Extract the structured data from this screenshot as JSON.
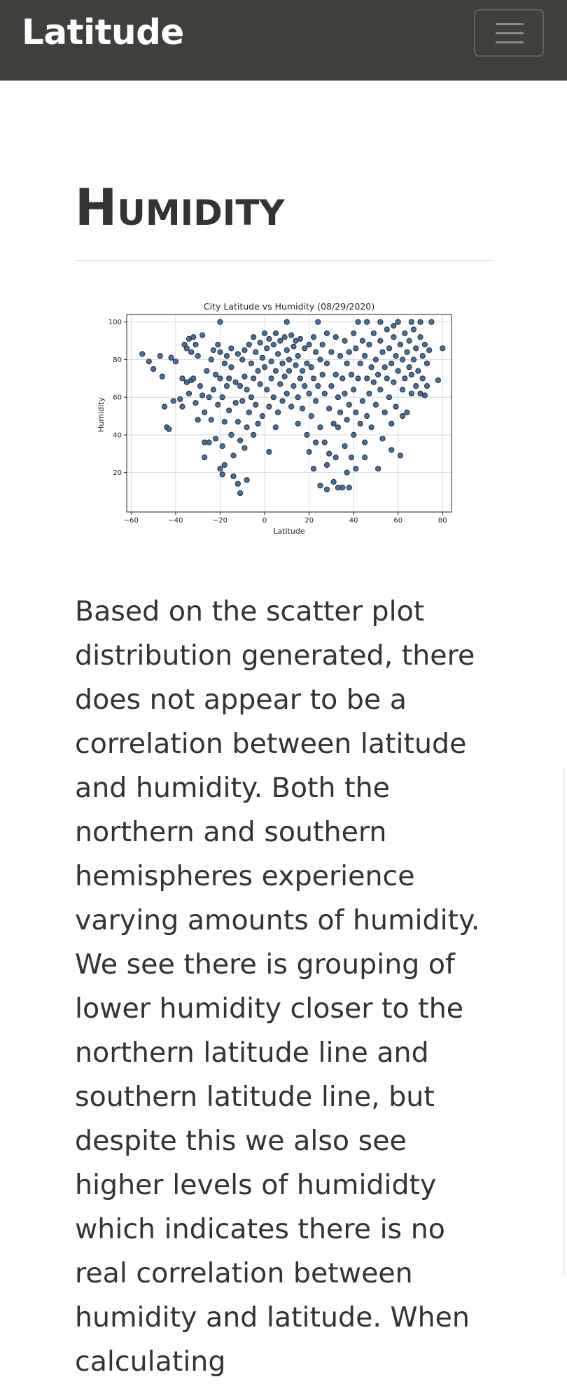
{
  "navbar": {
    "brand": "Latitude",
    "toggle_icon": "hamburger-menu-icon"
  },
  "page": {
    "heading": "Humidity",
    "body": "Based on the scatter plot distribution generated, there does not appear to be a correlation between latitude and humidity. Both the northern and southern hemispheres experience varying amounts of humidity. We see there is grouping of lower humidity closer to the northern latitude line and southern latitude line, but despite this we also see higher levels of humididty which indicates there is no real correlation between humidity and latitude. When calculating"
  },
  "chart_data": {
    "type": "scatter",
    "title": "City Latitude vs Humidity (08/29/2020)",
    "xlabel": "Latitude",
    "ylabel": "Humidity",
    "xlim": [
      -62,
      84
    ],
    "ylim": [
      -1,
      104
    ],
    "xticks": [
      -60,
      -40,
      -20,
      0,
      20,
      40,
      60,
      80
    ],
    "xtick_labels": [
      "−60",
      "−40",
      "−20",
      "0",
      "20",
      "40",
      "60",
      "80"
    ],
    "yticks": [
      20,
      40,
      60,
      80,
      100
    ],
    "grid": true,
    "marker_color": "#4a6f9a",
    "marker_edge": "#1f2d3a",
    "points": [
      [
        -55,
        83
      ],
      [
        -52,
        79
      ],
      [
        -50,
        75
      ],
      [
        -47,
        82
      ],
      [
        -46,
        71
      ],
      [
        -45,
        55
      ],
      [
        -44,
        44
      ],
      [
        -43,
        43
      ],
      [
        -42,
        81
      ],
      [
        -41,
        58
      ],
      [
        -40,
        79
      ],
      [
        -38,
        59
      ],
      [
        -37,
        55
      ],
      [
        -36,
        88
      ],
      [
        -35,
        86
      ],
      [
        -35,
        68
      ],
      [
        -34,
        91
      ],
      [
        -34,
        62
      ],
      [
        -33,
        84
      ],
      [
        -33,
        69
      ],
      [
        -32,
        70
      ],
      [
        -31,
        88
      ],
      [
        -31,
        57
      ],
      [
        -30,
        82
      ],
      [
        -30,
        48
      ],
      [
        -29,
        66
      ],
      [
        -28,
        93
      ],
      [
        -28,
        61
      ],
      [
        -27,
        52
      ],
      [
        -27,
        36
      ],
      [
        -26,
        74
      ],
      [
        -25,
        60
      ],
      [
        -25,
        36
      ],
      [
        -24,
        48
      ],
      [
        -23,
        85
      ],
      [
        -23,
        64
      ],
      [
        -22,
        72
      ],
      [
        -22,
        38
      ],
      [
        -21,
        88
      ],
      [
        -21,
        56
      ],
      [
        -20,
        84
      ],
      [
        -20,
        70
      ],
      [
        -20,
        22
      ],
      [
        -19,
        60
      ],
      [
        -19,
        34
      ],
      [
        -19,
        19
      ],
      [
        -18,
        78
      ],
      [
        -18,
        47
      ],
      [
        -18,
        24
      ],
      [
        -17,
        82
      ],
      [
        -17,
        66
      ],
      [
        -16,
        70
      ],
      [
        -16,
        53
      ],
      [
        -15,
        86
      ],
      [
        -15,
        76
      ],
      [
        -15,
        40
      ],
      [
        -14,
        29
      ],
      [
        -14,
        18
      ],
      [
        -13,
        68
      ],
      [
        -13,
        57
      ],
      [
        -12,
        83
      ],
      [
        -12,
        47
      ],
      [
        -12,
        14
      ],
      [
        -11,
        66
      ],
      [
        -11,
        37
      ],
      [
        -11,
        9
      ],
      [
        -10,
        80
      ],
      [
        -10,
        58
      ],
      [
        -9,
        85
      ],
      [
        -9,
        71
      ],
      [
        -9,
        33
      ],
      [
        -8,
        64
      ],
      [
        -8,
        44
      ],
      [
        -8,
        16
      ],
      [
        -7,
        88
      ],
      [
        -7,
        52
      ],
      [
        -6,
        78
      ],
      [
        -6,
        60
      ],
      [
        -5,
        92
      ],
      [
        -5,
        70
      ],
      [
        -5,
        40
      ],
      [
        -4,
        84
      ],
      [
        -4,
        56
      ],
      [
        -3,
        74
      ],
      [
        -3,
        46
      ],
      [
        -2,
        89
      ],
      [
        -2,
        67
      ],
      [
        -1,
        81
      ],
      [
        -1,
        50
      ],
      [
        0,
        94
      ],
      [
        0,
        76
      ],
      [
        1,
        86
      ],
      [
        1,
        64
      ],
      [
        2,
        91
      ],
      [
        2,
        55
      ],
      [
        2,
        31
      ],
      [
        3,
        79
      ],
      [
        3,
        70
      ],
      [
        4,
        88
      ],
      [
        4,
        60
      ],
      [
        5,
        94
      ],
      [
        5,
        74
      ],
      [
        6,
        83
      ],
      [
        6,
        52
      ],
      [
        7,
        90
      ],
      [
        7,
        67
      ],
      [
        8,
        78
      ],
      [
        8,
        58
      ],
      [
        9,
        92
      ],
      [
        9,
        71
      ],
      [
        10,
        85
      ],
      [
        10,
        62
      ],
      [
        11,
        80
      ],
      [
        11,
        74
      ],
      [
        12,
        93
      ],
      [
        12,
        55
      ],
      [
        13,
        87
      ],
      [
        13,
        66
      ],
      [
        14,
        77
      ],
      [
        14,
        90
      ],
      [
        15,
        82
      ],
      [
        15,
        60
      ],
      [
        16,
        91
      ],
      [
        16,
        70
      ],
      [
        17,
        74
      ],
      [
        17,
        54
      ],
      [
        18,
        86
      ],
      [
        18,
        66
      ],
      [
        19,
        78
      ],
      [
        19,
        40
      ],
      [
        20,
        88
      ],
      [
        20,
        62
      ],
      [
        20,
        31
      ],
      [
        21,
        76
      ],
      [
        21,
        50
      ],
      [
        22,
        92
      ],
      [
        22,
        70
      ],
      [
        22,
        22
      ],
      [
        23,
        84
      ],
      [
        23,
        58
      ],
      [
        24,
        100
      ],
      [
        24,
        66
      ],
      [
        25,
        80
      ],
      [
        25,
        44
      ],
      [
        25,
        13
      ],
      [
        26,
        88
      ],
      [
        26,
        72
      ],
      [
        27,
        62
      ],
      [
        27,
        36
      ],
      [
        28,
        94
      ],
      [
        28,
        78
      ],
      [
        28,
        11
      ],
      [
        29,
        54
      ],
      [
        29,
        30
      ],
      [
        30,
        84
      ],
      [
        30,
        66
      ],
      [
        31,
        46
      ],
      [
        31,
        15
      ],
      [
        32,
        92
      ],
      [
        32,
        72
      ],
      [
        32,
        28
      ],
      [
        33,
        60
      ],
      [
        33,
        44
      ],
      [
        34,
        82
      ],
      [
        34,
        52
      ],
      [
        35,
        70
      ],
      [
        35,
        12
      ],
      [
        36,
        90
      ],
      [
        36,
        62
      ],
      [
        36,
        34
      ],
      [
        37,
        78
      ],
      [
        37,
        48
      ],
      [
        38,
        84
      ],
      [
        38,
        56
      ],
      [
        38,
        12
      ],
      [
        39,
        72
      ],
      [
        39,
        28
      ],
      [
        40,
        94
      ],
      [
        40,
        64
      ],
      [
        40,
        40
      ],
      [
        41,
        86
      ],
      [
        41,
        52
      ],
      [
        41,
        22
      ],
      [
        42,
        100
      ],
      [
        42,
        70
      ],
      [
        43,
        78
      ],
      [
        43,
        46
      ],
      [
        44,
        90
      ],
      [
        44,
        58
      ],
      [
        45,
        82
      ],
      [
        45,
        36
      ],
      [
        46,
        70
      ],
      [
        46,
        50
      ],
      [
        47,
        88
      ],
      [
        47,
        62
      ],
      [
        48,
        76
      ],
      [
        48,
        44
      ],
      [
        49,
        94
      ],
      [
        49,
        68
      ],
      [
        50,
        80
      ],
      [
        50,
        56
      ],
      [
        51,
        72
      ],
      [
        51,
        22
      ],
      [
        52,
        90
      ],
      [
        52,
        64
      ],
      [
        53,
        84
      ],
      [
        53,
        38
      ],
      [
        54,
        76
      ],
      [
        54,
        52
      ],
      [
        55,
        96
      ],
      [
        55,
        70
      ],
      [
        56,
        86
      ],
      [
        56,
        60
      ],
      [
        57,
        78
      ],
      [
        57,
        46
      ],
      [
        58,
        92
      ],
      [
        58,
        68
      ],
      [
        59,
        82
      ],
      [
        59,
        55
      ],
      [
        60,
        100
      ],
      [
        60,
        74
      ],
      [
        61,
        88
      ],
      [
        61,
        29
      ],
      [
        62,
        80
      ],
      [
        62,
        64
      ],
      [
        63,
        94
      ],
      [
        63,
        70
      ],
      [
        64,
        84
      ],
      [
        64,
        52
      ],
      [
        65,
        90
      ],
      [
        65,
        76
      ],
      [
        66,
        62
      ],
      [
        66,
        72
      ],
      [
        67,
        96
      ],
      [
        67,
        80
      ],
      [
        68,
        86
      ],
      [
        68,
        66
      ],
      [
        69,
        74
      ],
      [
        70,
        92
      ],
      [
        70,
        62
      ],
      [
        71,
        82
      ],
      [
        71,
        70
      ],
      [
        72,
        88
      ],
      [
        72,
        61
      ],
      [
        73,
        78
      ],
      [
        73,
        66
      ],
      [
        74,
        85
      ],
      [
        75,
        100
      ],
      [
        78,
        69
      ],
      [
        80,
        86
      ],
      [
        15,
        46
      ],
      [
        -32,
        92
      ],
      [
        -37,
        70
      ],
      [
        -24,
        80
      ],
      [
        -27,
        28
      ],
      [
        -20,
        100
      ],
      [
        5,
        44
      ],
      [
        10,
        100
      ],
      [
        23,
        36
      ],
      [
        28,
        24
      ],
      [
        33,
        12
      ],
      [
        37,
        20
      ],
      [
        45,
        28
      ],
      [
        57,
        32
      ],
      [
        62,
        50
      ],
      [
        46,
        100
      ],
      [
        52,
        100
      ],
      [
        58,
        98
      ],
      [
        66,
        100
      ],
      [
        70,
        100
      ]
    ]
  }
}
